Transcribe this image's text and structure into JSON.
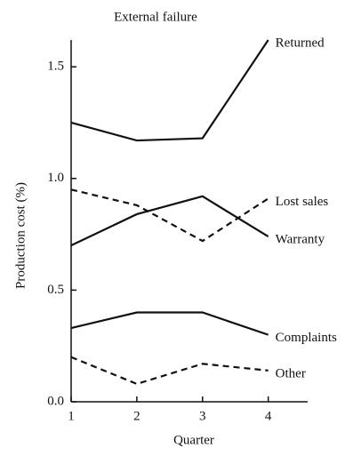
{
  "chart_data": {
    "type": "line",
    "title": "External failure",
    "x_label": "Quarter",
    "y_label": "Production cost (%)",
    "x": [
      1,
      2,
      3,
      4
    ],
    "xlim": [
      1,
      4.6
    ],
    "xticks": [
      1,
      2,
      3,
      4
    ],
    "ylim": [
      0,
      1.62
    ],
    "yticks": [
      {
        "value": 0,
        "label": "0.0"
      },
      0.5,
      {
        "value": 1,
        "label": "1.0"
      },
      1.5
    ],
    "series": [
      {
        "name": "Returned",
        "color": "#111111",
        "dash": "solid",
        "values": [
          1.25,
          1.17,
          1.18,
          1.62
        ]
      },
      {
        "name": "Lost sales",
        "color": "#111111",
        "dash": "dashed",
        "values": [
          0.95,
          0.88,
          0.72,
          0.91
        ]
      },
      {
        "name": "Warranty",
        "color": "#111111",
        "dash": "solid",
        "values": [
          0.7,
          0.84,
          0.92,
          0.74
        ]
      },
      {
        "name": "Complaints",
        "color": "#111111",
        "dash": "solid",
        "values": [
          0.33,
          0.4,
          0.4,
          0.3
        ]
      },
      {
        "name": "Other",
        "color": "#111111",
        "dash": "dashed",
        "values": [
          0.2,
          0.08,
          0.17,
          0.14
        ]
      }
    ]
  }
}
